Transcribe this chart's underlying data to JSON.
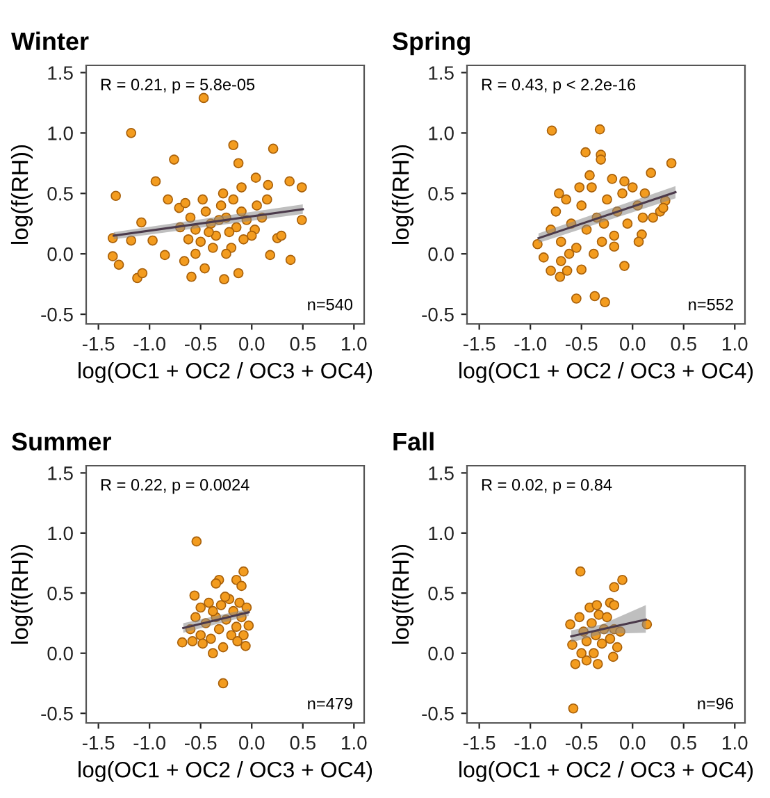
{
  "chart_data": [
    {
      "type": "scatter",
      "title": "Winter",
      "xlabel": "log(OC1 + OC2 / OC3 + OC4)",
      "ylabel": "log(f(RH))",
      "xlim": [
        -1.62,
        1.1
      ],
      "ylim": [
        -0.58,
        1.56
      ],
      "xticks": [
        {
          "value": -1.5,
          "label": "-1.5"
        },
        {
          "value": -1,
          "label": "-1.0"
        },
        {
          "value": -0.5,
          "label": "-0.5"
        },
        {
          "value": 0,
          "label": "0.0"
        },
        {
          "value": 0.5,
          "label": "0.5"
        },
        {
          "value": 1,
          "label": "1.0"
        }
      ],
      "yticks": [
        {
          "value": -0.5,
          "label": "-0.5"
        },
        {
          "value": 0,
          "label": "0.0"
        },
        {
          "value": 0.5,
          "label": "0.5"
        },
        {
          "value": 1,
          "label": "1.0"
        },
        {
          "value": 1.5,
          "label": "1.5"
        }
      ],
      "grid": false,
      "annotations": [
        "R = 0.21, p = 5.8e-05",
        "n=540"
      ],
      "series": [
        {
          "marker": "circle",
          "color": "#f39c1f",
          "x": [
            -0.47,
            -1.18,
            -0.76,
            -0.18,
            0.21,
            -0.13,
            -0.94,
            -1.33,
            0.37,
            0.49,
            0.04,
            0.16,
            -1.36,
            -1.36,
            -1.3,
            -1.12,
            -1.07,
            -1.08,
            -0.97,
            -0.85,
            -0.59,
            -0.27,
            -0.13,
            0.18,
            0.38,
            0.49,
            0.25,
            0.29,
            0.03,
            -0.46,
            -0.66,
            -1.18,
            -0.82,
            -0.71,
            -0.65,
            -0.6,
            -0.55,
            -0.5,
            -0.45,
            -0.4,
            -0.35,
            -0.3,
            -0.25,
            -0.2,
            -0.15,
            -0.1,
            -0.05,
            0.0,
            0.05,
            0.1,
            -0.62,
            -0.48,
            -0.38,
            -0.28,
            -0.18,
            -0.08,
            -0.55,
            -0.42,
            -0.32,
            -0.22,
            0.15,
            -0.7,
            -0.25,
            -0.1
          ],
          "values": [
            1.29,
            1.0,
            0.78,
            0.9,
            0.87,
            0.75,
            0.6,
            0.48,
            0.6,
            0.55,
            0.63,
            0.57,
            0.13,
            -0.02,
            -0.09,
            -0.2,
            -0.16,
            0.26,
            0.11,
            -0.01,
            -0.19,
            -0.21,
            -0.16,
            -0.01,
            -0.05,
            0.28,
            0.13,
            0.15,
            0.2,
            -0.12,
            -0.06,
            0.11,
            0.45,
            0.38,
            0.42,
            0.3,
            0.2,
            0.1,
            0.35,
            0.25,
            0.15,
            0.4,
            0.3,
            0.05,
            0.22,
            0.35,
            0.28,
            0.15,
            0.4,
            0.3,
            0.12,
            0.45,
            0.05,
            0.5,
            0.45,
            0.12,
            0.0,
            0.18,
            0.28,
            0.18,
            0.45,
            0.22,
            0.0,
            0.55
          ]
        },
        {
          "type": "line",
          "color": "#4b3a4b",
          "x": [
            -1.35,
            0.5
          ],
          "values": [
            0.15,
            0.37
          ],
          "lower": [
            0.12,
            0.33
          ],
          "upper": [
            0.18,
            0.41
          ]
        }
      ]
    },
    {
      "type": "scatter",
      "title": "Spring",
      "xlabel": "log(OC1 + OC2 / OC3 + OC4)",
      "ylabel": "log(f(RH))",
      "xlim": [
        -1.62,
        1.1
      ],
      "ylim": [
        -0.58,
        1.56
      ],
      "xticks": [
        {
          "value": -1.5,
          "label": "-1.5"
        },
        {
          "value": -1,
          "label": "-1.0"
        },
        {
          "value": -0.5,
          "label": "-0.5"
        },
        {
          "value": 0,
          "label": "0.0"
        },
        {
          "value": 0.5,
          "label": "0.5"
        },
        {
          "value": 1,
          "label": "1.0"
        }
      ],
      "yticks": [
        {
          "value": -0.5,
          "label": "-0.5"
        },
        {
          "value": 0,
          "label": "0.0"
        },
        {
          "value": 0.5,
          "label": "0.5"
        },
        {
          "value": 1,
          "label": "1.0"
        },
        {
          "value": 1.5,
          "label": "1.5"
        }
      ],
      "grid": false,
      "annotations": [
        "R = 0.43, p < 2.2e-16",
        "n=552"
      ],
      "series": [
        {
          "marker": "circle",
          "color": "#f39c1f",
          "x": [
            -0.79,
            -0.32,
            -0.46,
            -0.31,
            -0.31,
            0.38,
            0.18,
            -0.55,
            -0.37,
            -0.27,
            -0.08,
            -0.93,
            -0.87,
            -0.8,
            -0.71,
            -0.64,
            -0.5,
            0.09,
            0.06,
            0.27,
            0.32,
            -0.18,
            -0.7,
            -0.8,
            -0.75,
            -0.7,
            -0.65,
            -0.6,
            -0.55,
            -0.5,
            -0.45,
            -0.4,
            -0.35,
            -0.3,
            -0.25,
            -0.2,
            -0.15,
            -0.1,
            -0.05,
            0.0,
            0.05,
            0.12,
            0.2,
            -0.62,
            -0.42,
            -0.28,
            -0.18,
            -0.08,
            -0.72,
            -0.52,
            -0.38,
            0.1,
            0.3
          ],
          "values": [
            1.02,
            1.03,
            0.84,
            0.82,
            0.78,
            0.75,
            0.67,
            -0.37,
            -0.35,
            -0.4,
            -0.1,
            0.08,
            -0.03,
            -0.14,
            -0.19,
            -0.14,
            -0.13,
            0.16,
            0.1,
            0.35,
            0.44,
            0.06,
            -0.06,
            0.2,
            0.35,
            0.1,
            0.45,
            0.25,
            0.05,
            0.4,
            0.2,
            0.55,
            0.3,
            0.1,
            0.45,
            0.62,
            0.35,
            0.5,
            0.25,
            0.55,
            0.4,
            0.5,
            0.3,
            0.0,
            0.65,
            0.25,
            0.15,
            0.6,
            0.5,
            0.55,
            0.0,
            0.3,
            0.38
          ]
        },
        {
          "type": "line",
          "color": "#4b3a4b",
          "x": [
            -0.92,
            0.42
          ],
          "values": [
            0.13,
            0.51
          ],
          "lower": [
            0.09,
            0.46
          ],
          "upper": [
            0.17,
            0.56
          ]
        }
      ]
    },
    {
      "type": "scatter",
      "title": "Summer",
      "xlabel": "log(OC1 + OC2 / OC3 + OC4)",
      "ylabel": "log(f(RH))",
      "xlim": [
        -1.62,
        1.1
      ],
      "ylim": [
        -0.58,
        1.56
      ],
      "xticks": [
        {
          "value": -1.5,
          "label": "-1.5"
        },
        {
          "value": -1,
          "label": "-1.0"
        },
        {
          "value": -0.5,
          "label": "-0.5"
        },
        {
          "value": 0,
          "label": "0.0"
        },
        {
          "value": 0.5,
          "label": "0.5"
        },
        {
          "value": 1,
          "label": "1.0"
        }
      ],
      "yticks": [
        {
          "value": -0.5,
          "label": "-0.5"
        },
        {
          "value": 0,
          "label": "0.0"
        },
        {
          "value": 0.5,
          "label": "0.5"
        },
        {
          "value": 1,
          "label": "1.0"
        },
        {
          "value": 1.5,
          "label": "1.5"
        }
      ],
      "grid": false,
      "annotations": [
        "R = 0.22, p = 0.0024",
        "n=479"
      ],
      "series": [
        {
          "marker": "circle",
          "color": "#f39c1f",
          "x": [
            -0.54,
            -0.08,
            -0.15,
            -0.32,
            -0.35,
            -0.28,
            -0.38,
            -0.06,
            -0.03,
            -0.68,
            -0.58,
            -0.56,
            -0.1,
            -0.6,
            -0.55,
            -0.5,
            -0.5,
            -0.45,
            -0.42,
            -0.4,
            -0.35,
            -0.32,
            -0.3,
            -0.28,
            -0.25,
            -0.22,
            -0.2,
            -0.18,
            -0.15,
            -0.12,
            -0.1,
            -0.08,
            -0.05,
            -0.48,
            -0.38,
            -0.26,
            -0.14
          ],
          "values": [
            0.93,
            0.68,
            0.61,
            0.61,
            0.58,
            -0.25,
            0.0,
            0.06,
            0.23,
            0.09,
            0.1,
            0.48,
            0.56,
            0.2,
            0.3,
            0.38,
            0.15,
            0.25,
            0.42,
            0.12,
            0.3,
            0.2,
            0.4,
            0.05,
            0.28,
            0.45,
            0.15,
            0.35,
            0.22,
            0.42,
            0.3,
            0.15,
            0.38,
            0.08,
            0.35,
            0.47,
            0.1
          ]
        },
        {
          "type": "line",
          "color": "#4b3a4b",
          "x": [
            -0.67,
            -0.03
          ],
          "values": [
            0.21,
            0.34
          ],
          "lower": [
            0.17,
            0.31
          ],
          "upper": [
            0.25,
            0.37
          ]
        }
      ]
    },
    {
      "type": "scatter",
      "title": "Fall",
      "xlabel": "log(OC1 + OC2 / OC3 + OC4)",
      "ylabel": "log(f(RH))",
      "xlim": [
        -1.62,
        1.1
      ],
      "ylim": [
        -0.58,
        1.56
      ],
      "xticks": [
        {
          "value": -1.5,
          "label": "-1.5"
        },
        {
          "value": -1,
          "label": "-1.0"
        },
        {
          "value": -0.5,
          "label": "-0.5"
        },
        {
          "value": 0,
          "label": "0.0"
        },
        {
          "value": 0.5,
          "label": "0.5"
        },
        {
          "value": 1,
          "label": "1.0"
        }
      ],
      "yticks": [
        {
          "value": -0.5,
          "label": "-0.5"
        },
        {
          "value": 0,
          "label": "0.0"
        },
        {
          "value": 0.5,
          "label": "0.5"
        },
        {
          "value": 1,
          "label": "1.0"
        },
        {
          "value": 1.5,
          "label": "1.5"
        }
      ],
      "grid": false,
      "annotations": [
        "R = 0.02, p = 0.84",
        "n=96"
      ],
      "series": [
        {
          "marker": "circle",
          "color": "#f39c1f",
          "x": [
            -0.51,
            -0.1,
            -0.18,
            0.14,
            -0.58,
            -0.56,
            -0.34,
            -0.61,
            -0.59,
            -0.45,
            -0.15,
            -0.19,
            -0.22,
            -0.18,
            -0.52,
            -0.48,
            -0.45,
            -0.42,
            -0.4,
            -0.38,
            -0.36,
            -0.33,
            -0.3,
            -0.28,
            -0.25,
            -0.22,
            -0.18,
            -0.12,
            -0.5,
            -0.35
          ],
          "values": [
            0.68,
            0.61,
            0.55,
            0.24,
            -0.46,
            -0.09,
            -0.09,
            0.24,
            0.07,
            -0.06,
            0.05,
            -0.03,
            0.42,
            0.4,
            0.3,
            0.18,
            0.1,
            0.38,
            0.25,
            0.0,
            0.15,
            0.32,
            0.08,
            0.2,
            0.3,
            0.12,
            0.2,
            0.18,
            0.0,
            0.4
          ]
        },
        {
          "type": "line",
          "color": "#4b3a4b",
          "x": [
            -0.6,
            -0.3,
            0.13
          ],
          "values": [
            0.14,
            0.2,
            0.28
          ],
          "lower": [
            0.09,
            0.16,
            0.17
          ],
          "upper": [
            0.19,
            0.24,
            0.4
          ]
        }
      ]
    }
  ]
}
